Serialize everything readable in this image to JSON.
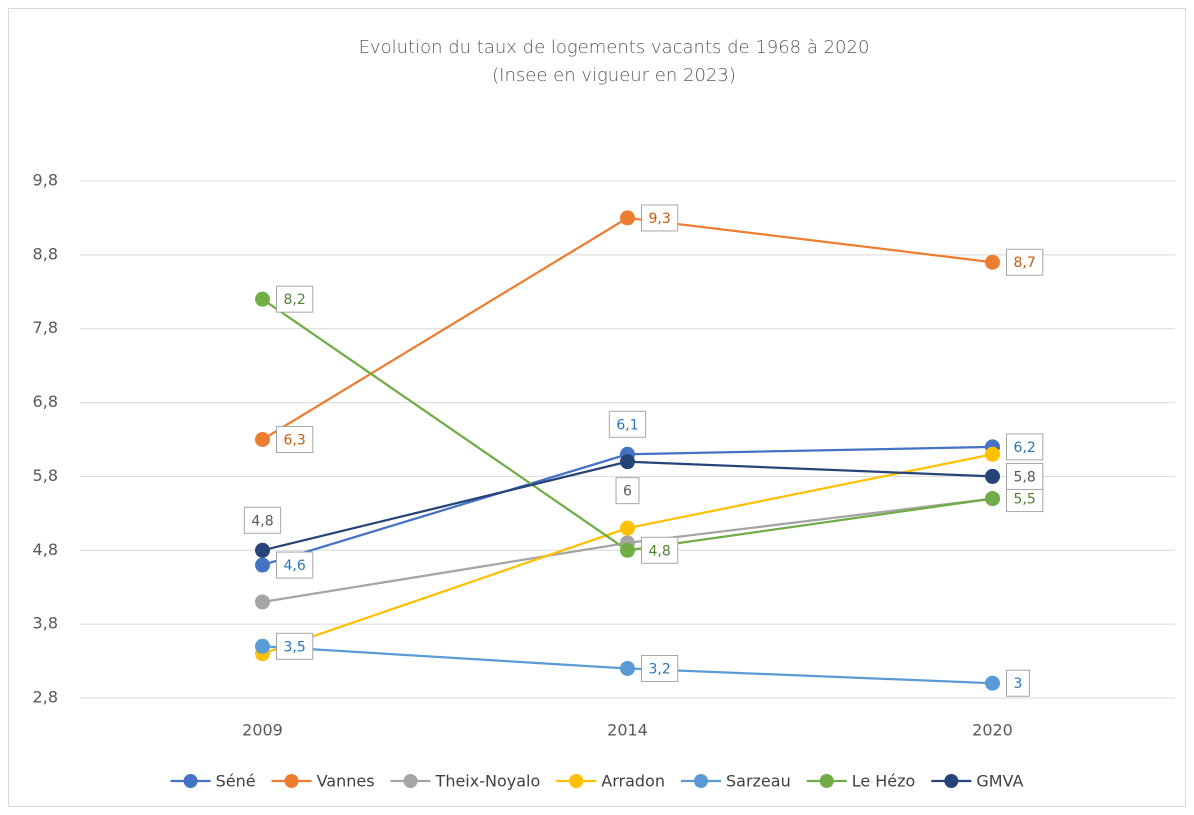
{
  "chart_data": {
    "type": "line",
    "title": "Evolution du taux de logements vacants de 1968 à 2020",
    "subtitle": "(Insee en vigueur en 2023)",
    "categories": [
      "2009",
      "2014",
      "2020"
    ],
    "ylim": [
      2.8,
      9.8
    ],
    "yticks": [
      {
        "value": 2.8,
        "label": "2,8"
      },
      {
        "value": 3.8,
        "label": "3,8"
      },
      {
        "value": 4.8,
        "label": "4,8"
      },
      {
        "value": 5.8,
        "label": "5,8"
      },
      {
        "value": 6.8,
        "label": "6,8"
      },
      {
        "value": 7.8,
        "label": "7,8"
      },
      {
        "value": 8.8,
        "label": "8,8"
      },
      {
        "value": 9.8,
        "label": "9,8"
      }
    ],
    "grid": true,
    "legend": "bottom",
    "series": [
      {
        "name": "Séné",
        "color": "#4472c4",
        "label_color": "#2e75b6",
        "values": [
          4.6,
          6.1,
          6.2
        ],
        "value_labels": [
          "4,6",
          "6,1",
          "6,2"
        ]
      },
      {
        "name": "Vannes",
        "color": "#ed7d31",
        "label_color": "#c55a11",
        "values": [
          6.3,
          9.3,
          8.7
        ],
        "value_labels": [
          "6,3",
          "9,3",
          "8,7"
        ]
      },
      {
        "name": "Theix-Noyalo",
        "color": "#a5a5a5",
        "values": [
          4.1,
          4.9,
          5.5
        ]
      },
      {
        "name": "Arradon",
        "color": "#ffc000",
        "values": [
          3.4,
          5.1,
          6.1
        ]
      },
      {
        "name": "Sarzeau",
        "color": "#5b9bd5",
        "label_color": "#2e75b6",
        "values": [
          3.5,
          3.2,
          3.0
        ],
        "value_labels": [
          "3,5",
          "3,2",
          "3"
        ]
      },
      {
        "name": "Le Hézo",
        "color": "#70ad47",
        "label_color": "#548235",
        "values": [
          8.2,
          4.8,
          5.5
        ],
        "value_labels": [
          "8,2",
          "4,8",
          "5,5"
        ]
      },
      {
        "name": "GMVA",
        "color": "#264478",
        "label_color": "#595959",
        "values": [
          4.8,
          6.0,
          5.8
        ],
        "value_labels": [
          "4,8",
          "6",
          "5,8"
        ]
      }
    ]
  }
}
